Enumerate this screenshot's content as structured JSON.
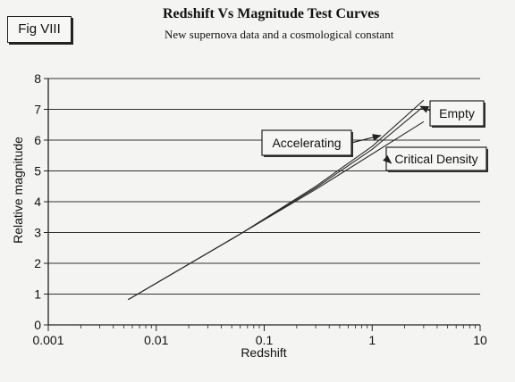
{
  "figure_label": "Fig VIII",
  "chart_data": {
    "type": "line",
    "title": "Redshift Vs Magnitude Test Curves",
    "subtitle": "New supernova data and a cosmological constant",
    "xlabel": "Redshift",
    "ylabel": "Relative magnitude",
    "xscale": "log",
    "xlim": [
      0.001,
      10
    ],
    "ylim": [
      0,
      8
    ],
    "x_ticks": [
      "0.001",
      "0.01",
      "0.1",
      "1",
      "10"
    ],
    "y_ticks": [
      "0",
      "1",
      "2",
      "3",
      "4",
      "5",
      "6",
      "7",
      "8"
    ],
    "grid": "horizontal",
    "series": [
      {
        "name": "Empty",
        "x": [
          0.0055,
          0.06,
          0.3,
          1.0,
          3.0
        ],
        "y": [
          0.82,
          2.95,
          4.45,
          5.7,
          7.1
        ]
      },
      {
        "name": "Accelerating",
        "x": [
          0.0055,
          0.06,
          0.3,
          1.0,
          3.0
        ],
        "y": [
          0.82,
          2.95,
          4.5,
          5.8,
          7.3
        ]
      },
      {
        "name": "Critical Density",
        "x": [
          0.0055,
          0.06,
          0.3,
          1.0,
          3.0
        ],
        "y": [
          0.82,
          2.95,
          4.4,
          5.55,
          6.6
        ]
      }
    ],
    "annotations": [
      {
        "text": "Empty",
        "points_to": [
          2.8,
          7.1
        ]
      },
      {
        "text": "Accelerating",
        "points_to": [
          1.2,
          6.15
        ]
      },
      {
        "text": "Critical Density",
        "points_to": [
          1.5,
          5.25
        ]
      }
    ]
  }
}
